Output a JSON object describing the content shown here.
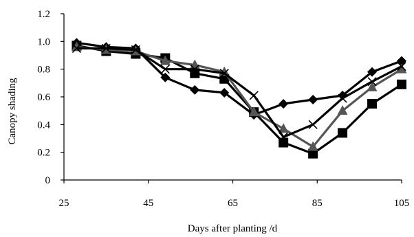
{
  "chart_data": {
    "type": "line",
    "xlabel": "Days after planting /d",
    "ylabel": "Canopy shading",
    "xlim": [
      25,
      105
    ],
    "ylim": [
      0,
      1.2
    ],
    "xticks": [
      "25",
      "45",
      "65",
      "85",
      "105"
    ],
    "yticks": [
      "0",
      "0.2",
      "0.4",
      "0.6",
      "0.8",
      "1.0",
      "1.2"
    ],
    "x": [
      28,
      35,
      42,
      49,
      56,
      63,
      70,
      77,
      84,
      91,
      98,
      105
    ],
    "series": [
      {
        "marker": "diamond",
        "color": "#000000",
        "values": [
          0.99,
          0.96,
          0.95,
          0.74,
          0.65,
          0.63,
          0.47,
          0.55,
          0.58,
          0.61,
          0.78,
          0.86
        ]
      },
      {
        "marker": "square",
        "color": "#000000",
        "values": [
          0.97,
          0.93,
          0.91,
          0.88,
          0.77,
          0.73,
          0.49,
          0.27,
          0.19,
          0.34,
          0.55,
          0.69
        ]
      },
      {
        "marker": "triangle",
        "color": "#555555",
        "values": [
          0.96,
          0.94,
          0.93,
          0.86,
          0.83,
          0.78,
          0.49,
          0.37,
          0.24,
          0.5,
          0.67,
          0.8
        ]
      },
      {
        "marker": "cross",
        "color": "#000000",
        "values": [
          0.95,
          0.95,
          0.94,
          0.8,
          0.8,
          0.77,
          0.61,
          0.31,
          0.4,
          0.59,
          0.71,
          0.82
        ]
      }
    ]
  }
}
